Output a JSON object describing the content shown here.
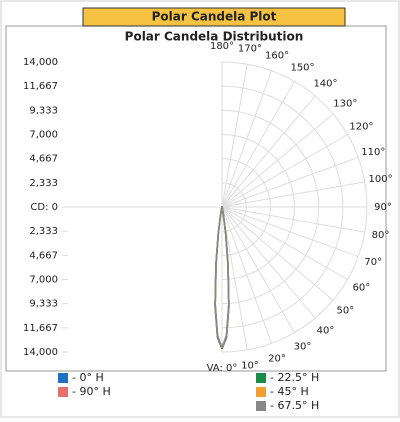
{
  "header": {
    "title": "Polar Candela Plot"
  },
  "chart_data": {
    "type": "polar",
    "title": "Polar Candela Distribution",
    "rlim": [
      0,
      14000
    ],
    "rticks_upper": [
      {
        "value": 14000,
        "label": "14,000"
      },
      {
        "value": 11667,
        "label": "11,667"
      },
      {
        "value": 9333,
        "label": "9,333"
      },
      {
        "value": 7000,
        "label": "7,000"
      },
      {
        "value": 4667,
        "label": "4,667"
      },
      {
        "value": 2333,
        "label": "2,333"
      },
      {
        "value": 0,
        "label": "CD: 0"
      }
    ],
    "rticks_lower": [
      {
        "value": 2333,
        "label": "2,333"
      },
      {
        "value": 4667,
        "label": "4,667"
      },
      {
        "value": 7000,
        "label": "7,000"
      },
      {
        "value": 9333,
        "label": "9,333"
      },
      {
        "value": 11667,
        "label": "11,667"
      },
      {
        "value": 14000,
        "label": "14,000"
      }
    ],
    "angle_ticks": [
      {
        "value": 180,
        "label": "180°"
      },
      {
        "value": 170,
        "label": "170°"
      },
      {
        "value": 160,
        "label": "160°"
      },
      {
        "value": 150,
        "label": "150°"
      },
      {
        "value": 140,
        "label": "140°"
      },
      {
        "value": 130,
        "label": "130°"
      },
      {
        "value": 120,
        "label": "120°"
      },
      {
        "value": 110,
        "label": "110°"
      },
      {
        "value": 100,
        "label": "100°"
      },
      {
        "value": 90,
        "label": "90°"
      },
      {
        "value": 80,
        "label": "80°"
      },
      {
        "value": 70,
        "label": "70°"
      },
      {
        "value": 60,
        "label": "60°"
      },
      {
        "value": 50,
        "label": "50°"
      },
      {
        "value": 40,
        "label": "40°"
      },
      {
        "value": 30,
        "label": "30°"
      },
      {
        "value": 20,
        "label": "20°"
      },
      {
        "value": 10,
        "label": "10°"
      },
      {
        "value": 0,
        "label": "VA: 0°"
      }
    ],
    "x": [
      0,
      2,
      4,
      6,
      8,
      10,
      15,
      20,
      30,
      60,
      90,
      120,
      150,
      170,
      180
    ],
    "series": [
      {
        "name": "- 0° H",
        "color": "#1f6fc5",
        "values": [
          13700,
          12600,
          9600,
          5600,
          2600,
          800,
          150,
          50,
          10,
          0,
          0,
          0,
          0,
          40,
          80
        ]
      },
      {
        "name": "- 90° H",
        "color": "#e8706a",
        "values": [
          13600,
          12400,
          9400,
          5400,
          2500,
          780,
          140,
          50,
          10,
          0,
          0,
          0,
          0,
          40,
          80
        ]
      },
      {
        "name": "- 22.5° H",
        "color": "#1a8a4a",
        "values": [
          13700,
          12500,
          9500,
          5500,
          2550,
          790,
          145,
          50,
          10,
          0,
          0,
          0,
          0,
          40,
          80
        ]
      },
      {
        "name": "- 45° H",
        "color": "#f0a030",
        "values": [
          13650,
          12450,
          9450,
          5450,
          2520,
          785,
          142,
          50,
          10,
          0,
          0,
          0,
          0,
          40,
          80
        ]
      },
      {
        "name": "- 67.5° H",
        "color": "#888888",
        "values": [
          13620,
          12420,
          9420,
          5420,
          2510,
          782,
          141,
          50,
          10,
          0,
          0,
          0,
          0,
          40,
          80
        ]
      }
    ]
  }
}
